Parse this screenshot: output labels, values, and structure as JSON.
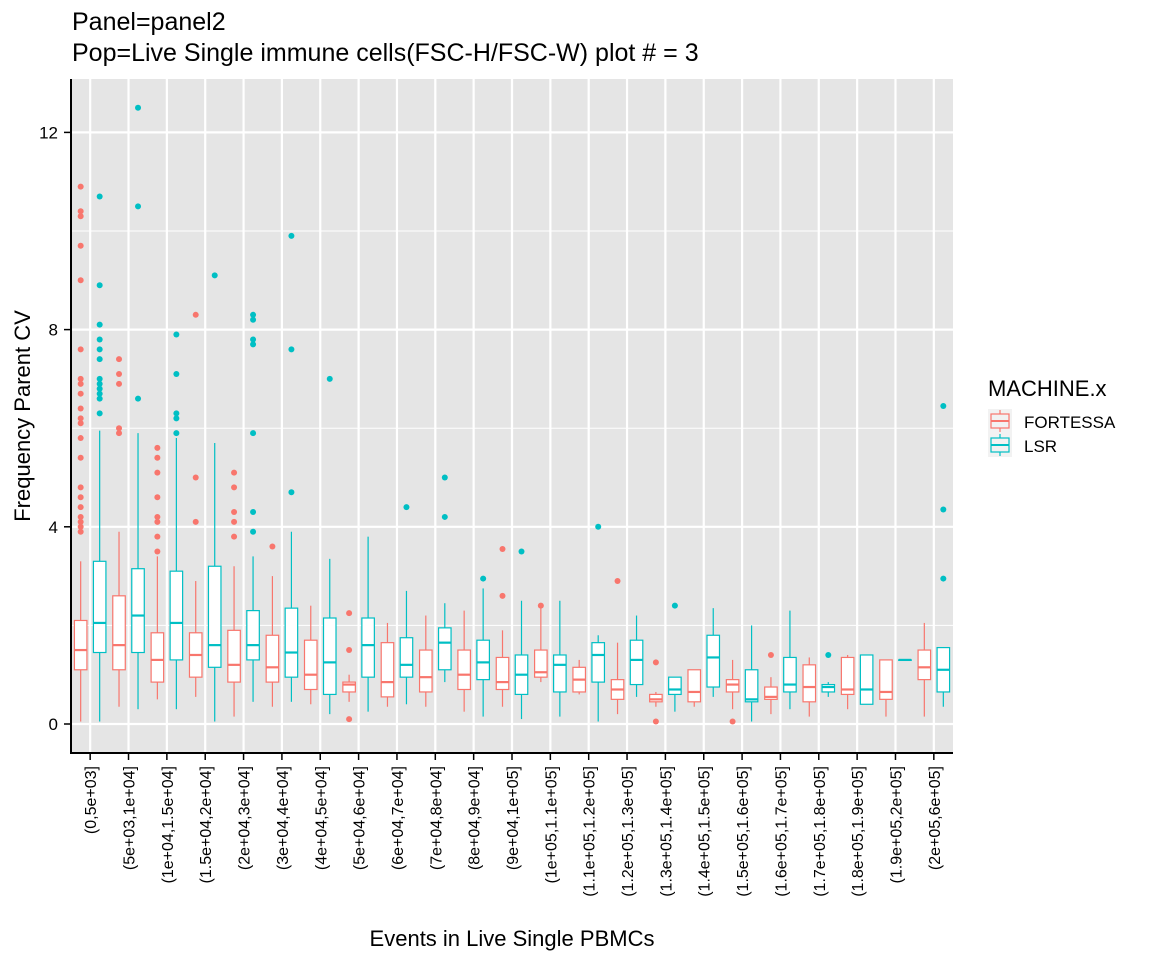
{
  "chart_data": {
    "type": "boxplot",
    "title": "Panel=panel2",
    "subtitle": "Pop=Live Single immune cells(FSC-H/FSC-W) plot # = 3",
    "xlabel": "Events in Live Single PBMCs",
    "ylabel": "Frequency Parent CV",
    "ylim": [
      -0.6,
      13.0
    ],
    "yticks": [
      0,
      4,
      8,
      12
    ],
    "grid": true,
    "legend": {
      "title": "MACHINE.x",
      "position": "right",
      "entries": [
        "FORTESSA",
        "LSR"
      ]
    },
    "colors": {
      "FORTESSA": "#F8766D",
      "LSR": "#00BFC4",
      "panel": "#E5E5E5",
      "grid": "#FFFFFF"
    },
    "categories": [
      "(0,5e+03]",
      "(5e+03,1e+04]",
      "(1e+04,1.5e+04]",
      "(1.5e+04,2e+04]",
      "(2e+04,3e+04]",
      "(3e+04,4e+04]",
      "(4e+04,5e+04]",
      "(5e+04,6e+04]",
      "(6e+04,7e+04]",
      "(7e+04,8e+04]",
      "(8e+04,9e+04]",
      "(9e+04,1e+05]",
      "(1e+05,1.1e+05]",
      "(1.1e+05,1.2e+05]",
      "(1.2e+05,1.3e+05]",
      "(1.3e+05,1.4e+05]",
      "(1.4e+05,1.5e+05]",
      "(1.5e+05,1.6e+05]",
      "(1.6e+05,1.7e+05]",
      "(1.7e+05,1.8e+05]",
      "(1.8e+05,1.9e+05]",
      "(1.9e+05,2e+05]",
      "(2e+05,6e+05]"
    ],
    "series": [
      {
        "name": "FORTESSA",
        "boxes": [
          {
            "min": 0.05,
            "q1": 1.1,
            "median": 1.5,
            "q3": 2.1,
            "max": 3.3,
            "outliers": [
              3.9,
              4.0,
              4.1,
              4.2,
              4.4,
              4.6,
              4.8,
              5.4,
              5.8,
              6.1,
              6.2,
              6.4,
              6.7,
              6.9,
              7.0,
              7.6,
              9.0,
              9.7,
              10.3,
              10.4,
              10.9
            ]
          },
          {
            "min": 0.35,
            "q1": 1.1,
            "median": 1.6,
            "q3": 2.6,
            "max": 3.9,
            "outliers": [
              5.9,
              6.0,
              6.9,
              7.1,
              7.4
            ]
          },
          {
            "min": 0.5,
            "q1": 0.85,
            "median": 1.3,
            "q3": 1.85,
            "max": 3.4,
            "outliers": [
              3.5,
              3.8,
              4.1,
              4.2,
              4.6,
              5.1,
              5.4,
              5.6
            ]
          },
          {
            "min": 0.55,
            "q1": 0.95,
            "median": 1.4,
            "q3": 1.85,
            "max": 2.9,
            "outliers": [
              4.1,
              5.0,
              8.3
            ]
          },
          {
            "min": 0.15,
            "q1": 0.85,
            "median": 1.2,
            "q3": 1.9,
            "max": 3.2,
            "outliers": [
              3.8,
              4.1,
              4.3,
              4.8,
              5.1
            ]
          },
          {
            "min": 0.35,
            "q1": 0.85,
            "median": 1.15,
            "q3": 1.8,
            "max": 3.0,
            "outliers": [
              3.6
            ]
          },
          {
            "min": 0.4,
            "q1": 0.7,
            "median": 1.0,
            "q3": 1.7,
            "max": 2.4,
            "outliers": []
          },
          {
            "min": 0.45,
            "q1": 0.65,
            "median": 0.8,
            "q3": 0.85,
            "max": 1.0,
            "outliers": [
              0.1,
              1.5,
              2.25
            ]
          },
          {
            "min": 0.35,
            "q1": 0.55,
            "median": 0.85,
            "q3": 1.65,
            "max": 2.05,
            "outliers": []
          },
          {
            "min": 0.35,
            "q1": 0.65,
            "median": 0.95,
            "q3": 1.5,
            "max": 2.2,
            "outliers": []
          },
          {
            "min": 0.25,
            "q1": 0.7,
            "median": 1.0,
            "q3": 1.5,
            "max": 2.3,
            "outliers": []
          },
          {
            "min": 0.35,
            "q1": 0.7,
            "median": 0.85,
            "q3": 1.35,
            "max": 1.9,
            "outliers": [
              2.6,
              3.55
            ]
          },
          {
            "min": 0.85,
            "q1": 0.95,
            "median": 1.05,
            "q3": 1.5,
            "max": 2.35,
            "outliers": [
              2.4
            ]
          },
          {
            "min": 0.6,
            "q1": 0.65,
            "median": 0.9,
            "q3": 1.15,
            "max": 1.3,
            "outliers": []
          },
          {
            "min": 0.2,
            "q1": 0.5,
            "median": 0.7,
            "q3": 0.9,
            "max": 1.65,
            "outliers": [
              2.9
            ]
          },
          {
            "min": 0.35,
            "q1": 0.45,
            "median": 0.5,
            "q3": 0.6,
            "max": 0.65,
            "outliers": [
              0.05,
              1.25
            ]
          },
          {
            "min": 0.35,
            "q1": 0.45,
            "median": 0.65,
            "q3": 1.1,
            "max": 1.1,
            "outliers": []
          },
          {
            "min": 0.3,
            "q1": 0.65,
            "median": 0.8,
            "q3": 0.9,
            "max": 1.3,
            "outliers": [
              0.05
            ]
          },
          {
            "min": 0.2,
            "q1": 0.5,
            "median": 0.55,
            "q3": 0.75,
            "max": 0.95,
            "outliers": [
              1.4
            ]
          },
          {
            "min": 0.15,
            "q1": 0.45,
            "median": 0.75,
            "q3": 1.2,
            "max": 1.35,
            "outliers": []
          },
          {
            "min": 0.3,
            "q1": 0.6,
            "median": 0.7,
            "q3": 1.35,
            "max": 1.4,
            "outliers": []
          },
          {
            "min": 0.15,
            "q1": 0.5,
            "median": 0.65,
            "q3": 1.3,
            "max": 1.3,
            "outliers": []
          },
          {
            "min": 0.15,
            "q1": 0.9,
            "median": 1.15,
            "q3": 1.5,
            "max": 2.05,
            "outliers": []
          }
        ]
      },
      {
        "name": "LSR",
        "boxes": [
          {
            "min": 0.05,
            "q1": 1.45,
            "median": 2.05,
            "q3": 3.3,
            "max": 5.95,
            "outliers": [
              6.3,
              6.6,
              6.7,
              6.8,
              6.9,
              7.0,
              7.4,
              7.6,
              7.8,
              8.1,
              8.9,
              10.7
            ]
          },
          {
            "min": 0.3,
            "q1": 1.45,
            "median": 2.2,
            "q3": 3.15,
            "max": 5.9,
            "outliers": [
              6.6,
              10.5,
              12.5
            ]
          },
          {
            "min": 0.3,
            "q1": 1.3,
            "median": 2.05,
            "q3": 3.1,
            "max": 5.8,
            "outliers": [
              5.9,
              6.2,
              6.3,
              7.1,
              7.9
            ]
          },
          {
            "min": 0.05,
            "q1": 1.15,
            "median": 1.6,
            "q3": 3.2,
            "max": 5.7,
            "outliers": [
              9.1
            ]
          },
          {
            "min": 0.45,
            "q1": 1.3,
            "median": 1.6,
            "q3": 2.3,
            "max": 3.4,
            "outliers": [
              3.9,
              4.3,
              5.9,
              7.7,
              7.8,
              8.2,
              8.3
            ]
          },
          {
            "min": 0.45,
            "q1": 0.95,
            "median": 1.45,
            "q3": 2.35,
            "max": 3.9,
            "outliers": [
              4.7,
              7.6,
              9.9
            ]
          },
          {
            "min": 0.2,
            "q1": 0.6,
            "median": 1.25,
            "q3": 2.15,
            "max": 3.35,
            "outliers": [
              7.0
            ]
          },
          {
            "min": 0.25,
            "q1": 0.95,
            "median": 1.6,
            "q3": 2.15,
            "max": 3.8,
            "outliers": []
          },
          {
            "min": 0.4,
            "q1": 0.95,
            "median": 1.2,
            "q3": 1.75,
            "max": 2.7,
            "outliers": [
              4.4
            ]
          },
          {
            "min": 0.85,
            "q1": 1.1,
            "median": 1.65,
            "q3": 1.95,
            "max": 2.45,
            "outliers": [
              4.2,
              5.0
            ]
          },
          {
            "min": 0.15,
            "q1": 0.9,
            "median": 1.25,
            "q3": 1.7,
            "max": 2.75,
            "outliers": [
              2.95
            ]
          },
          {
            "min": 0.1,
            "q1": 0.6,
            "median": 1.0,
            "q3": 1.4,
            "max": 2.5,
            "outliers": [
              3.5
            ]
          },
          {
            "min": 0.15,
            "q1": 0.65,
            "median": 1.2,
            "q3": 1.4,
            "max": 2.5,
            "outliers": []
          },
          {
            "min": 0.05,
            "q1": 0.85,
            "median": 1.4,
            "q3": 1.65,
            "max": 1.8,
            "outliers": [
              4.0
            ]
          },
          {
            "min": 0.55,
            "q1": 0.8,
            "median": 1.3,
            "q3": 1.7,
            "max": 2.2,
            "outliers": []
          },
          {
            "min": 0.25,
            "q1": 0.6,
            "median": 0.7,
            "q3": 0.95,
            "max": 0.95,
            "outliers": [
              2.4
            ]
          },
          {
            "min": 0.55,
            "q1": 0.75,
            "median": 1.35,
            "q3": 1.8,
            "max": 2.35,
            "outliers": []
          },
          {
            "min": 0.05,
            "q1": 0.45,
            "median": 0.5,
            "q3": 1.1,
            "max": 2.0,
            "outliers": []
          },
          {
            "min": 0.3,
            "q1": 0.65,
            "median": 0.8,
            "q3": 1.35,
            "max": 2.3,
            "outliers": []
          },
          {
            "min": 0.55,
            "q1": 0.65,
            "median": 0.75,
            "q3": 0.8,
            "max": 0.85,
            "outliers": [
              1.4
            ]
          },
          {
            "min": 0.4,
            "q1": 0.4,
            "median": 0.7,
            "q3": 1.4,
            "max": 1.4,
            "outliers": []
          },
          {
            "min": 1.3,
            "q1": 1.3,
            "median": 1.3,
            "q3": 1.3,
            "max": 1.3,
            "outliers": []
          },
          {
            "min": 0.35,
            "q1": 0.65,
            "median": 1.1,
            "q3": 1.55,
            "max": 1.55,
            "outliers": [
              2.95,
              4.35,
              6.45
            ]
          }
        ]
      }
    ]
  }
}
